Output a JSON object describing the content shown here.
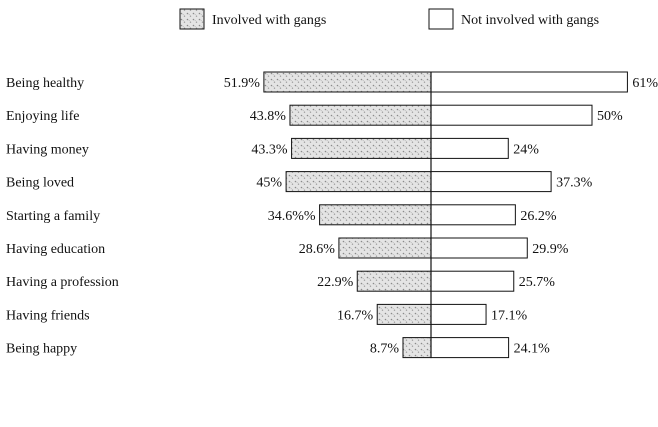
{
  "chart_data": {
    "type": "bar",
    "orientation": "horizontal-diverging",
    "title": "",
    "xlabel": "",
    "ylabel": "",
    "legend_position": "top-center",
    "categories": [
      "Being healthy",
      "Enjoying life",
      "Having money",
      "Being loved",
      "Starting a family",
      "Having education",
      "Having  a profession",
      "Having friends",
      "Being happy"
    ],
    "series": [
      {
        "name": "Involved with gangs",
        "direction": "left",
        "pattern": "stippled",
        "values": [
          51.9,
          43.8,
          43.3,
          45,
          34.6,
          28.6,
          22.9,
          16.7,
          8.7
        ],
        "labels": [
          "51.9%",
          "43.8%",
          "43.3%",
          "45%",
          "34.6%%",
          "28.6%",
          "22.9%",
          "16.7%",
          "8.7%"
        ]
      },
      {
        "name": "Not involved with gangs",
        "direction": "right",
        "pattern": "empty",
        "values": [
          61,
          50,
          24,
          37.3,
          26.2,
          29.9,
          25.7,
          17.1,
          24.1
        ],
        "labels": [
          "61%",
          "50%",
          "24%",
          "37.3%",
          "26.2%",
          "29.9%",
          "25.7%",
          "17.1%",
          "24.1%"
        ]
      }
    ],
    "colors": {
      "stroke": "#111111",
      "stipple_background": "#e4e4e4",
      "stipple_dot": "#8a8a8a",
      "empty_fill": "#ffffff"
    }
  }
}
